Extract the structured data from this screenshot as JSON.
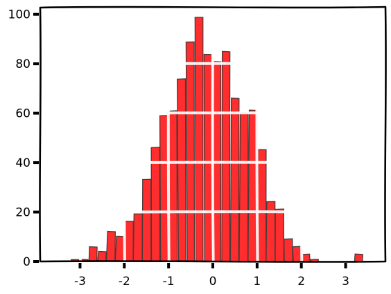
{
  "chart_data": {
    "type": "bar",
    "title": "",
    "xlabel": "",
    "ylabel": "",
    "style": "xkcd",
    "grid": true,
    "xlim": [
      -3.9,
      3.9
    ],
    "ylim": [
      0,
      103
    ],
    "xticks": [
      -3,
      -2,
      -1,
      0,
      1,
      2,
      3
    ],
    "xtick_labels": [
      "-3",
      "-2",
      "-1",
      "0",
      "1",
      "2",
      "3"
    ],
    "yticks": [
      0,
      20,
      40,
      60,
      80,
      100
    ],
    "ytick_labels": [
      "0",
      "20",
      "40",
      "60",
      "80",
      "100"
    ],
    "bin_width": 0.2,
    "x": [
      -3.1,
      -2.9,
      -2.7,
      -2.5,
      -2.3,
      -2.1,
      -1.9,
      -1.7,
      -1.5,
      -1.3,
      -1.1,
      -0.9,
      -0.7,
      -0.5,
      -0.3,
      -0.1,
      0.1,
      0.3,
      0.5,
      0.7,
      0.9,
      1.1,
      1.3,
      1.5,
      1.7,
      1.9,
      2.1,
      2.3,
      2.5,
      2.7,
      2.9,
      3.1,
      3.3
    ],
    "values": [
      1,
      1,
      6,
      4,
      12,
      10,
      16,
      19,
      33,
      46,
      59,
      61,
      74,
      89,
      99,
      84,
      81,
      85,
      66,
      60,
      61,
      45,
      24,
      21,
      9,
      6,
      3,
      1,
      0,
      0,
      0,
      0,
      3
    ],
    "colors": {
      "bar": "#ff2d2d",
      "edge": "#4a3a3a",
      "grid": "#ffffff",
      "frame": "#000000"
    }
  }
}
